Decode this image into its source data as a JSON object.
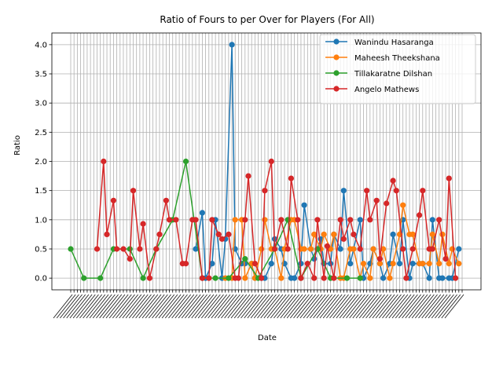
{
  "chart_data": {
    "type": "line",
    "title": "Ratio of Fours to per Over for Players (For All)",
    "xlabel": "Date",
    "ylabel": "Ratio",
    "ylim": [
      -0.2,
      4.2
    ],
    "yticks": [
      "0.0",
      "0.5",
      "1.0",
      "1.5",
      "2.0",
      "2.5",
      "3.0",
      "3.5",
      "4.0"
    ],
    "grid": true,
    "legend_position": "top-right",
    "series": [
      {
        "name": "Wanindu Hasaranga",
        "color": "#1f77b4",
        "values": [
          0.5,
          1.12,
          0.0,
          0.25,
          1.0,
          0.0,
          0.67,
          4.0,
          0.5,
          0.25,
          0.25,
          0.25,
          0.0,
          0.0,
          0.0,
          0.25,
          0.67,
          0.5,
          0.25,
          0.0,
          0.0,
          0.25,
          1.25,
          0.5,
          0.33,
          0.67,
          0.25,
          0.25,
          0.75,
          0.5,
          1.5,
          0.25,
          0.5,
          1.0,
          0.0,
          0.25,
          0.5,
          0.25,
          0.0,
          0.25,
          0.75,
          0.25,
          1.0,
          0.0,
          0.25,
          0.25,
          0.25,
          0.0,
          1.0,
          0.0,
          0.0,
          0.0,
          0.0,
          0.5
        ]
      },
      {
        "name": "Maheesh Theekshana",
        "color": "#ff7f0e",
        "values": [
          0.0,
          0.0,
          1.0,
          1.0,
          0.0,
          0.25,
          0.0,
          0.5,
          1.0,
          0.5,
          0.5,
          0.0,
          0.5,
          1.0,
          1.0,
          0.5,
          0.5,
          0.5,
          0.75,
          0.5,
          0.75,
          0.5,
          0.75,
          0.0,
          0.0,
          0.5,
          0.5,
          0.0,
          0.25,
          0.0,
          0.5,
          0.25,
          0.5,
          0.0,
          0.25,
          0.75,
          1.25,
          0.75,
          0.75,
          0.25,
          0.25,
          0.25,
          0.75,
          0.25,
          0.75,
          0.25,
          0.5,
          0.25
        ]
      },
      {
        "name": "Tillakaratne Dilshan",
        "color": "#2ca02c",
        "values": [
          0.5,
          0.0,
          0.0,
          0.5,
          0.5,
          0.0,
          0.5,
          1.0,
          2.0,
          0.0,
          0.0,
          0.0,
          0.33,
          0.0,
          0.5,
          1.0,
          0.0,
          0.5,
          0.0,
          0.0,
          0.0
        ]
      },
      {
        "name": "Angelo Mathews",
        "color": "#d62728",
        "values": [
          0.5,
          2.0,
          0.75,
          1.33,
          0.5,
          0.5,
          0.33,
          1.5,
          0.5,
          0.93,
          0.0,
          0.5,
          0.75,
          1.33,
          1.0,
          1.0,
          0.25,
          0.25,
          1.0,
          1.0,
          0.0,
          0.0,
          1.0,
          0.75,
          0.67,
          0.75,
          0.0,
          0.0,
          1.0,
          1.75,
          0.25,
          0.0,
          1.5,
          2.0,
          0.5,
          1.0,
          0.5,
          1.71,
          1.0,
          0.0,
          0.25,
          0.0,
          1.0,
          0.0,
          0.55,
          0.0,
          1.0,
          0.67,
          1.0,
          0.75,
          0.5,
          1.5,
          1.0,
          1.33,
          0.33,
          1.28,
          1.67,
          1.5,
          0.5,
          0.0,
          0.5,
          1.08,
          1.5,
          0.5,
          0.5,
          1.0,
          0.33,
          1.71,
          0.0
        ]
      }
    ]
  }
}
